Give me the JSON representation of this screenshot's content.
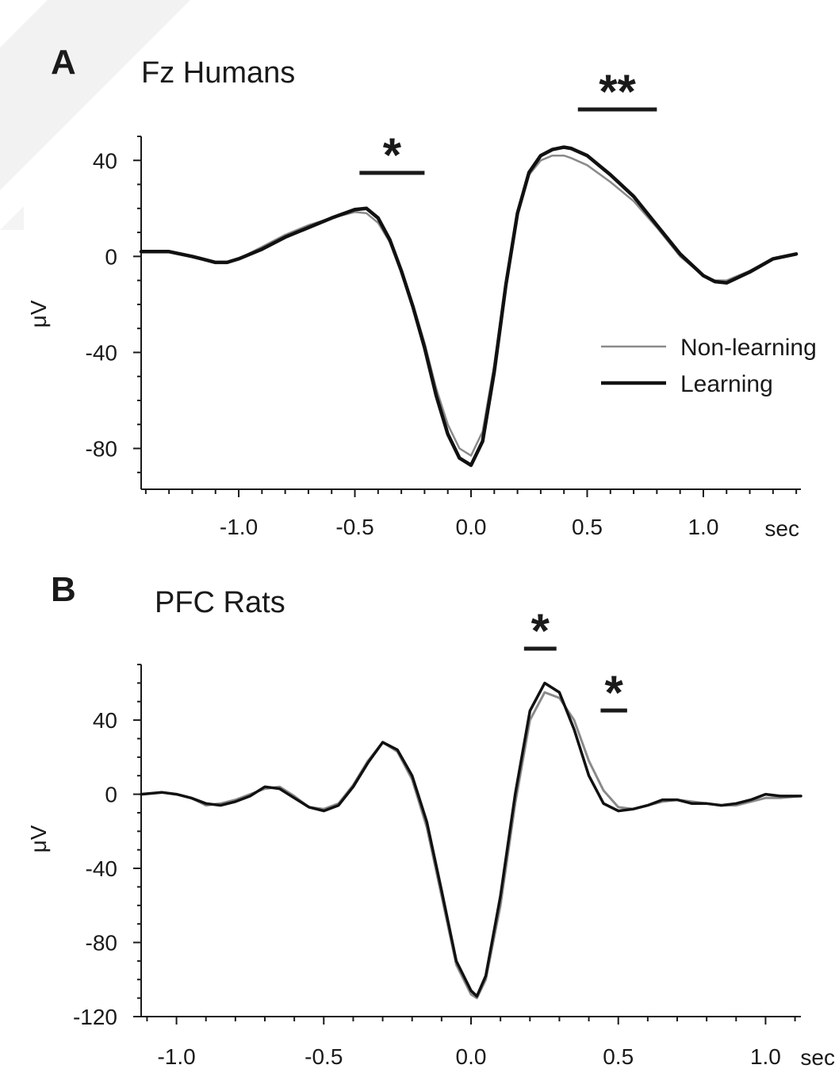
{
  "chart_data": [
    {
      "type": "line",
      "panel": "A",
      "title": "Fz Humans",
      "ylabel": "μV",
      "xunit": "sec",
      "xlim": [
        -1.42,
        1.42
      ],
      "ylim": [
        -97,
        50
      ],
      "xticks": [
        -1.0,
        -0.5,
        0.0,
        0.5,
        1.0
      ],
      "xtick_labels": [
        "-1.0",
        "-0.5",
        "0.0",
        "0.5",
        "1.0"
      ],
      "yticks": [
        40,
        0,
        -40,
        -80
      ],
      "ytick_labels": [
        "40",
        "0",
        "-40",
        "-80"
      ],
      "grid": false,
      "legend_position": "right",
      "series": [
        {
          "name": "Non-learning",
          "color": "#8a8a8a",
          "width": 2.5,
          "x": [
            -1.42,
            -1.3,
            -1.2,
            -1.1,
            -1.05,
            -1.0,
            -0.9,
            -0.8,
            -0.7,
            -0.6,
            -0.5,
            -0.45,
            -0.4,
            -0.35,
            -0.3,
            -0.25,
            -0.2,
            -0.15,
            -0.1,
            -0.05,
            0.0,
            0.05,
            0.1,
            0.15,
            0.2,
            0.25,
            0.3,
            0.35,
            0.4,
            0.43,
            0.5,
            0.6,
            0.7,
            0.8,
            0.9,
            1.0,
            1.05,
            1.1,
            1.2,
            1.3,
            1.4
          ],
          "y": [
            2,
            2,
            0,
            -2.5,
            -2.5,
            -1,
            4,
            9,
            13,
            16,
            18.5,
            18,
            14,
            6,
            -6,
            -20,
            -36,
            -55,
            -70,
            -80,
            -83,
            -73,
            -45,
            -10,
            18,
            34,
            40,
            42,
            42,
            41,
            38,
            31,
            23,
            12,
            0,
            -8,
            -10,
            -10,
            -6,
            -1,
            1
          ]
        },
        {
          "name": "Learning",
          "color": "#111111",
          "width": 4.5,
          "x": [
            -1.42,
            -1.3,
            -1.2,
            -1.1,
            -1.05,
            -1.0,
            -0.9,
            -0.8,
            -0.7,
            -0.6,
            -0.5,
            -0.45,
            -0.4,
            -0.35,
            -0.3,
            -0.25,
            -0.2,
            -0.15,
            -0.1,
            -0.05,
            0.0,
            0.05,
            0.1,
            0.15,
            0.2,
            0.25,
            0.3,
            0.35,
            0.4,
            0.43,
            0.5,
            0.6,
            0.7,
            0.8,
            0.9,
            1.0,
            1.05,
            1.1,
            1.2,
            1.3,
            1.4
          ],
          "y": [
            2,
            2,
            0,
            -2.5,
            -2.5,
            -1,
            3,
            8,
            12,
            16,
            19.5,
            20,
            16,
            7,
            -6,
            -21,
            -38,
            -58,
            -74,
            -84,
            -87,
            -77,
            -48,
            -12,
            18,
            35,
            42,
            44.5,
            45.5,
            45,
            42,
            34,
            25,
            13,
            1,
            -8,
            -10.5,
            -11,
            -6.5,
            -1,
            1
          ]
        }
      ],
      "significance": [
        {
          "label": "*",
          "x_start": -0.48,
          "x_end": -0.2
        },
        {
          "label": "**",
          "x_start": 0.46,
          "x_end": 0.8
        }
      ]
    },
    {
      "type": "line",
      "panel": "B",
      "title": "PFC Rats",
      "ylabel": "μV",
      "xunit": "sec",
      "xlim": [
        -1.12,
        1.12
      ],
      "ylim": [
        -120,
        70
      ],
      "xticks": [
        -1.0,
        -0.5,
        0.0,
        0.5,
        1.0
      ],
      "xtick_labels": [
        "-1.0",
        "-0.5",
        "0.0",
        "0.5",
        "1.0"
      ],
      "yticks": [
        40,
        0,
        -40,
        -80,
        -120
      ],
      "ytick_labels": [
        "40",
        "0",
        "-40",
        "-80",
        "-120"
      ],
      "grid": false,
      "series": [
        {
          "name": "Non-learning",
          "color": "#8a8a8a",
          "width": 3,
          "x": [
            -1.12,
            -1.05,
            -1.0,
            -0.95,
            -0.9,
            -0.85,
            -0.8,
            -0.75,
            -0.7,
            -0.65,
            -0.6,
            -0.55,
            -0.5,
            -0.45,
            -0.4,
            -0.35,
            -0.3,
            -0.25,
            -0.2,
            -0.15,
            -0.1,
            -0.05,
            0.0,
            0.02,
            0.05,
            0.1,
            0.15,
            0.2,
            0.25,
            0.3,
            0.35,
            0.4,
            0.45,
            0.5,
            0.55,
            0.6,
            0.65,
            0.7,
            0.75,
            0.8,
            0.85,
            0.9,
            0.95,
            1.0,
            1.05,
            1.12
          ],
          "y": [
            0,
            1,
            0,
            -2,
            -6,
            -5,
            -3,
            0,
            3,
            4,
            -1,
            -7,
            -8,
            -5,
            5,
            18,
            28,
            23,
            8,
            -18,
            -55,
            -92,
            -108,
            -110,
            -100,
            -60,
            -5,
            40,
            55,
            52,
            40,
            18,
            2,
            -7,
            -8,
            -6,
            -4,
            -3,
            -4,
            -5,
            -6,
            -6,
            -4,
            -2,
            -2,
            -1
          ]
        },
        {
          "name": "Learning",
          "color": "#111111",
          "width": 3.5,
          "x": [
            -1.12,
            -1.05,
            -1.0,
            -0.95,
            -0.9,
            -0.85,
            -0.8,
            -0.75,
            -0.7,
            -0.65,
            -0.6,
            -0.55,
            -0.5,
            -0.45,
            -0.4,
            -0.35,
            -0.3,
            -0.25,
            -0.2,
            -0.15,
            -0.1,
            -0.05,
            0.0,
            0.02,
            0.05,
            0.1,
            0.15,
            0.2,
            0.25,
            0.3,
            0.35,
            0.4,
            0.45,
            0.5,
            0.55,
            0.6,
            0.65,
            0.7,
            0.75,
            0.8,
            0.85,
            0.9,
            0.95,
            1.0,
            1.05,
            1.12
          ],
          "y": [
            0,
            1,
            0,
            -2,
            -5,
            -6,
            -4,
            -1,
            4,
            3,
            -2,
            -7,
            -9,
            -6,
            4,
            17,
            28,
            24,
            10,
            -15,
            -52,
            -90,
            -106,
            -109,
            -98,
            -55,
            0,
            45,
            60,
            55,
            35,
            10,
            -5,
            -9,
            -8,
            -6,
            -3,
            -3,
            -5,
            -5,
            -6,
            -5,
            -3,
            0,
            -1,
            -1
          ]
        }
      ],
      "significance": [
        {
          "label": "*",
          "x_start": 0.18,
          "x_end": 0.29
        },
        {
          "label": "*",
          "x_start": 0.44,
          "x_end": 0.53
        }
      ]
    }
  ]
}
